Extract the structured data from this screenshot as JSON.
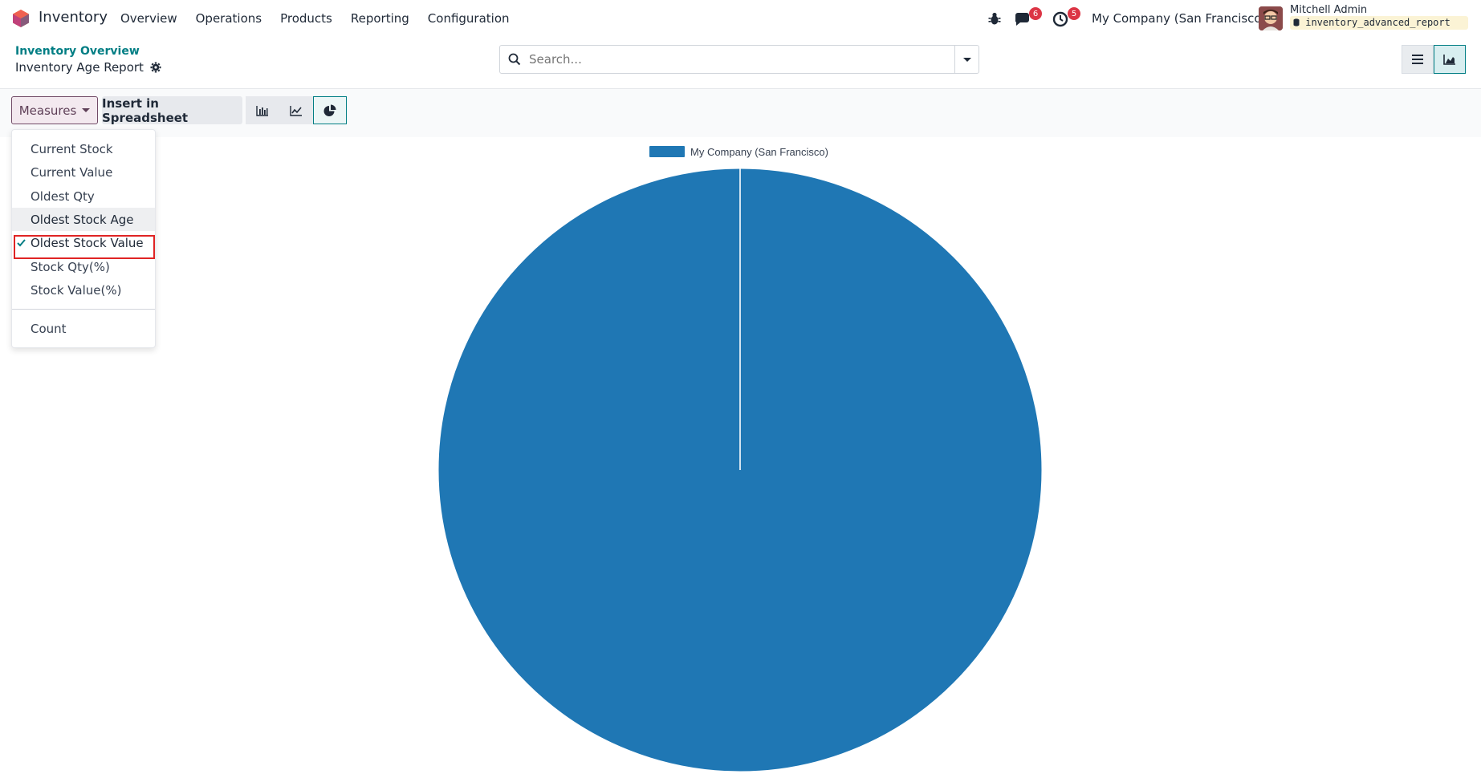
{
  "navbar": {
    "app_name": "Inventory",
    "menu": [
      "Overview",
      "Operations",
      "Products",
      "Reporting",
      "Configuration"
    ],
    "chat_count": "6",
    "activity_count": "5",
    "company": "My Company (San Francisco)",
    "user_name": "Mitchell Admin",
    "db_name": "inventory_advanced_report"
  },
  "control": {
    "breadcrumb": "Inventory Overview",
    "title": "Inventory Age Report",
    "search_placeholder": "Search..."
  },
  "toolbar": {
    "measures_label": "Measures",
    "spreadsheet_label": "Insert in Spreadsheet"
  },
  "measures": {
    "items": [
      "Current Stock",
      "Current Value",
      "Oldest Qty",
      "Oldest Stock Age",
      "Oldest Stock Value",
      "Stock Qty(%)",
      "Stock Value(%)"
    ],
    "count_label": "Count",
    "checked": "Oldest Stock Value",
    "hovered": "Oldest Stock Age"
  },
  "colors": {
    "accent": "#017e84",
    "brand": "#714b67",
    "slice": "#1f77b4"
  },
  "chart_data": {
    "type": "pie",
    "labels": [
      "My Company (San Francisco)"
    ],
    "values": [
      100
    ],
    "legend": "top-center"
  }
}
